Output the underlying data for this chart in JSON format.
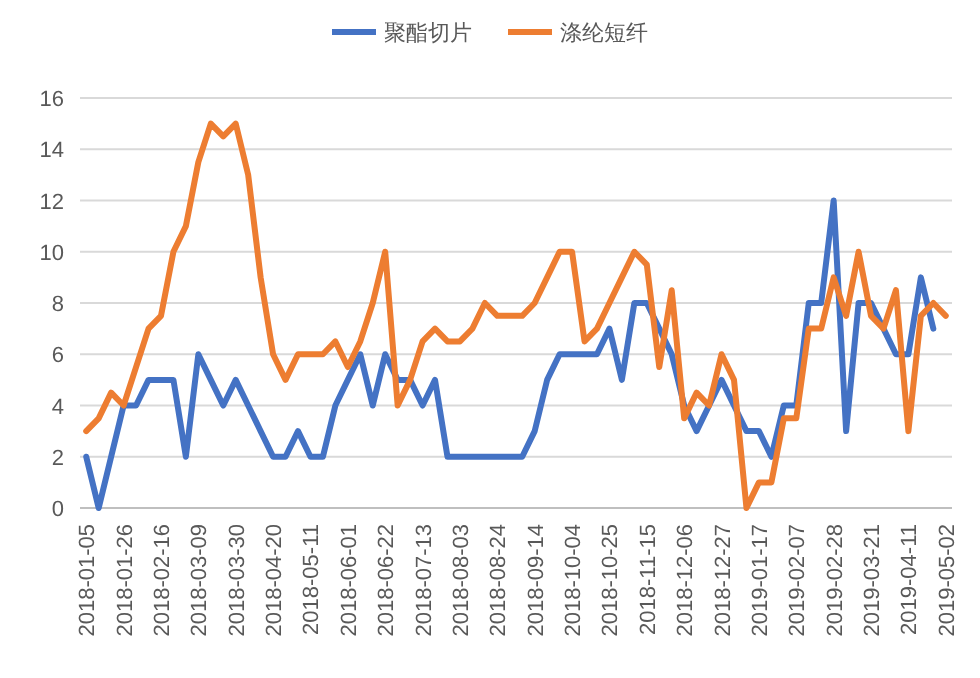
{
  "chart_data": {
    "type": "line",
    "categories": [
      "2018-01-05",
      null,
      null,
      "2018-01-26",
      null,
      null,
      "2018-02-16",
      null,
      null,
      "2018-03-09",
      null,
      null,
      "2018-03-30",
      null,
      null,
      "2018-04-20",
      null,
      null,
      "2018-05-11",
      null,
      null,
      "2018-06-01",
      null,
      null,
      "2018-06-22",
      null,
      null,
      "2018-07-13",
      null,
      null,
      "2018-08-03",
      null,
      null,
      "2018-08-24",
      null,
      null,
      "2018-09-14",
      null,
      null,
      "2018-10-04",
      null,
      null,
      "2018-10-25",
      null,
      null,
      "2018-11-15",
      null,
      null,
      "2018-12-06",
      null,
      null,
      "2018-12-27",
      null,
      null,
      "2019-01-17",
      null,
      null,
      "2019-02-07",
      null,
      null,
      "2019-02-28",
      null,
      null,
      "2019-03-21",
      null,
      null,
      "2019-04-11",
      null,
      null,
      "2019-05-02"
    ],
    "series": [
      {
        "name": "聚酯切片",
        "color": "#4472c4",
        "values": [
          2,
          0,
          2,
          4,
          4,
          5,
          5,
          5,
          2,
          6,
          5,
          4,
          5,
          4,
          3,
          2,
          2,
          3,
          2,
          2,
          4,
          5,
          6,
          4,
          6,
          5,
          5,
          4,
          5,
          2,
          2,
          2,
          2,
          2,
          2,
          2,
          3,
          5,
          6,
          6,
          6,
          6,
          7,
          5,
          8,
          8,
          7,
          6,
          4,
          3,
          4,
          5,
          4,
          3,
          3,
          2,
          4,
          4,
          8,
          8,
          12,
          3,
          8,
          8,
          7,
          6,
          6,
          9,
          7,
          null
        ]
      },
      {
        "name": "涤纶短纤",
        "color": "#ed7d31",
        "values": [
          3,
          3.5,
          4.5,
          4,
          5.5,
          7,
          7.5,
          10,
          11,
          13.5,
          15,
          14.5,
          15,
          13,
          9,
          6,
          5,
          6,
          6,
          6,
          6.5,
          5.5,
          6.5,
          8,
          10,
          4,
          5,
          6.5,
          7,
          6.5,
          6.5,
          7,
          8,
          7.5,
          7.5,
          7.5,
          8,
          9,
          10,
          10,
          6.5,
          7,
          8,
          9,
          10,
          9.5,
          5.5,
          8.5,
          3.5,
          4.5,
          4,
          6,
          5,
          0,
          1,
          1,
          3.5,
          3.5,
          7,
          7,
          9,
          7.5,
          10,
          7.5,
          7,
          8.5,
          3,
          7.5,
          8,
          7.5
        ]
      }
    ],
    "ylim": [
      0,
      16
    ],
    "yticks": [
      0,
      2,
      4,
      6,
      8,
      10,
      12,
      14,
      16
    ],
    "grid": "y",
    "legend": "top",
    "marker": "none",
    "line_style": "solid"
  }
}
